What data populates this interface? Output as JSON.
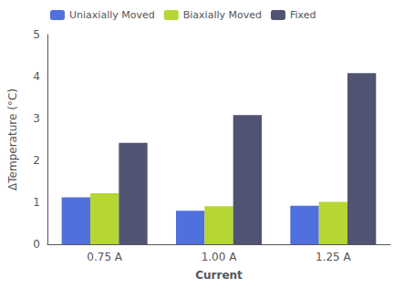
{
  "chart_data": {
    "type": "bar",
    "categories": [
      "0.75 A",
      "1.00 A",
      "1.25 A"
    ],
    "series": [
      {
        "name": "Uniaxially Moved",
        "values": [
          1.12,
          0.8,
          0.92
        ]
      },
      {
        "name": "Biaxially Moved",
        "values": [
          1.22,
          0.91,
          1.01
        ]
      },
      {
        "name": "Fixed",
        "values": [
          2.42,
          3.08,
          4.08
        ]
      }
    ],
    "xlabel": "Current",
    "ylabel": "ΔTemperature (°C)",
    "ylim": [
      0,
      5
    ],
    "yticks": [
      0,
      1,
      2,
      3,
      4,
      5
    ],
    "grid": false,
    "legend": "upper left"
  }
}
